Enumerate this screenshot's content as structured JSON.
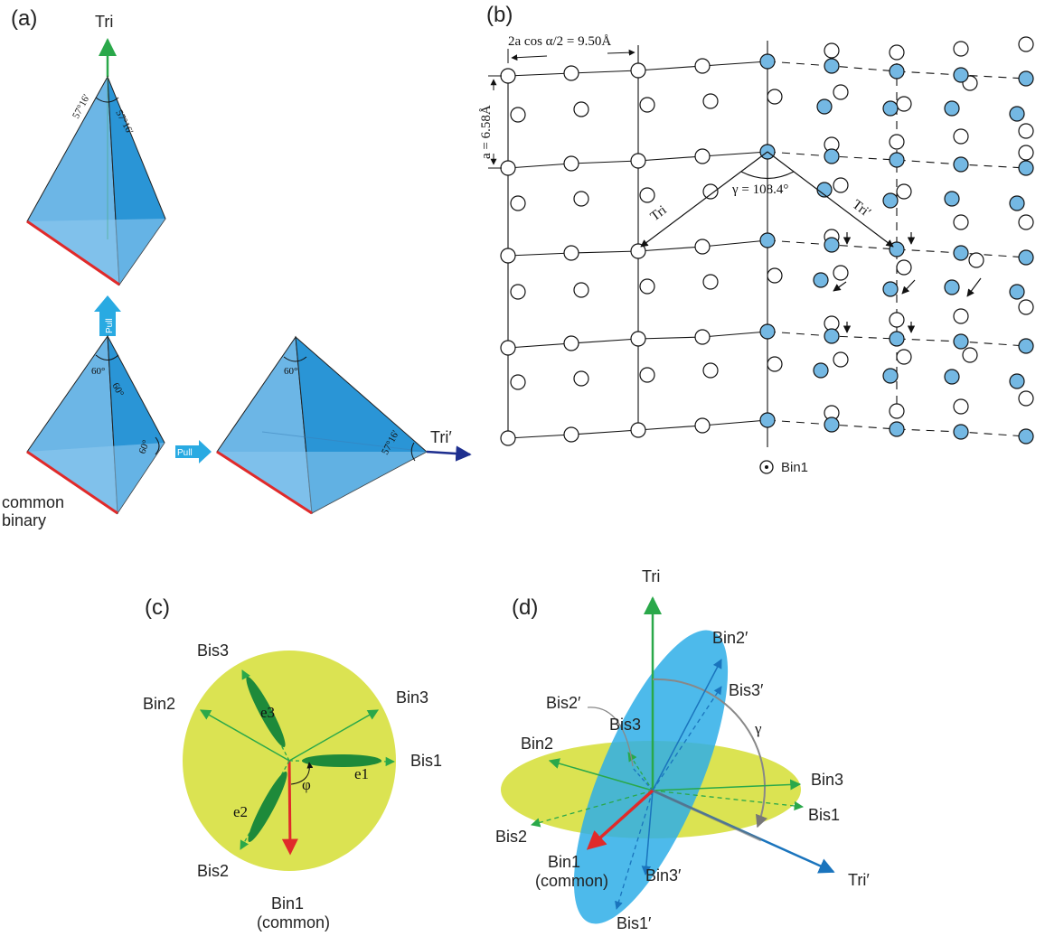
{
  "colors": {
    "blue_fill": "#4aa8e0",
    "blue_dark": "#1b87c9",
    "pull_arrow": "#29aae2",
    "green_axis": "#2aa84a",
    "red_edge": "#e02a2a",
    "navy_axis": "#1e2f8f",
    "yellow_disc": "#dbe352",
    "dark_green": "#1e8a3a",
    "atom_blue": "#74b8e3",
    "tri_prime_axis": "#1a74bd"
  },
  "panel_a": {
    "label": "(a)",
    "tri_label": "Tri",
    "angle_top_left": "57°16′",
    "angle_top_right": "57°16′",
    "pull_label": "Pull",
    "pull_label_2": "Pull",
    "angle_60_a": "60°",
    "angle_60_b": "60°",
    "angle_60_c": "60°",
    "angle_60_d": "60°",
    "angle_tri_prime": "57°16′",
    "tri_prime_label": "Tri′",
    "common_line1": "common",
    "common_line2": "binary"
  },
  "panel_b": {
    "label": "(b)",
    "top_measure": "2a cos α/2 = 9.50Å",
    "side_measure": "a = 6.58Å",
    "gamma_label": "γ = 108.4°",
    "tri_label": "Tri",
    "tri_prime_label": "Tri′",
    "bin1_label": "Bin1"
  },
  "panel_c": {
    "label": "(c)",
    "bis3": "Bis3",
    "bin2": "Bin2",
    "bin3": "Bin3",
    "bis1": "Bis1",
    "e1": "e1",
    "e2": "e2",
    "e3": "e3",
    "phi": "φ",
    "bis2": "Bis2",
    "bin1_line1": "Bin1",
    "bin1_line2": "(common)"
  },
  "panel_d": {
    "label": "(d)",
    "tri": "Tri",
    "bin2_prime": "Bin2′",
    "bis3_prime": "Bis3′",
    "bis2_prime": "Bis2′",
    "bis3": "Bis3",
    "gamma": "γ",
    "bin2": "Bin2",
    "bin3": "Bin3",
    "bis1": "Bis1",
    "bis2": "Bis2",
    "bin1_line1": "Bin1",
    "bin1_line2": "(common)",
    "bin3_prime": "Bin3′",
    "tri_prime": "Tri′",
    "bis1_prime": "Bis1′"
  }
}
